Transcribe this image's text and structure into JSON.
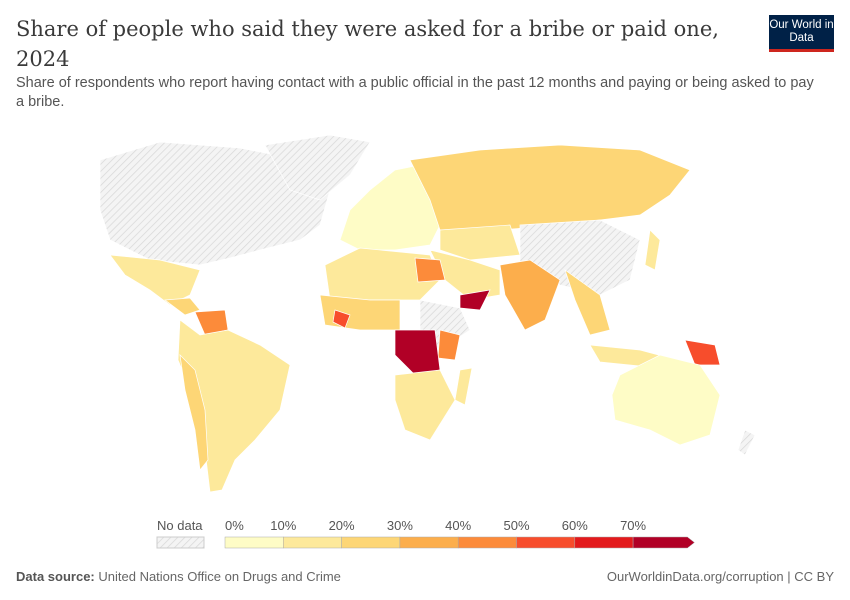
{
  "header": {
    "title": "Share of people who said they were asked for a bribe or paid one, 2024",
    "subtitle": "Share of respondents who report having contact with a public official in the past 12 months and paying or being asked to pay a bribe.",
    "logo": "Our World in Data"
  },
  "chart_data": {
    "type": "choropleth",
    "unit": "%",
    "legend": {
      "no_data_label": "No data",
      "ticks": [
        "0%",
        "10%",
        "20%",
        "30%",
        "40%",
        "50%",
        "60%",
        "70%"
      ],
      "bins": [
        0,
        10,
        20,
        30,
        40,
        50,
        60,
        70
      ],
      "colors": [
        "#fefcc6",
        "#fde99b",
        "#fdd676",
        "#fcae4c",
        "#fc8b3a",
        "#f74d2c",
        "#e31a1c",
        "#b10026"
      ],
      "no_data_color": "#eeeeee"
    },
    "regions": [
      {
        "name": "Russia",
        "value": 25
      },
      {
        "name": "DR Congo",
        "value": 75
      },
      {
        "name": "Yemen",
        "value": 75
      },
      {
        "name": "Egypt",
        "value": 45
      },
      {
        "name": "India",
        "value": 35
      },
      {
        "name": "Papua New Guinea",
        "value": 55
      },
      {
        "name": "Venezuela",
        "value": 45
      },
      {
        "name": "Australia",
        "value": 5
      },
      {
        "name": "Brazil",
        "value": 15
      },
      {
        "name": "Mexico",
        "value": 15
      },
      {
        "name": "Kenya",
        "value": 45
      },
      {
        "name": "Liberia",
        "value": 55
      }
    ]
  },
  "footer": {
    "source_label": "Data source:",
    "source": "United Nations Office on Drugs and Crime",
    "link": "OurWorldinData.org/corruption | CC BY"
  }
}
